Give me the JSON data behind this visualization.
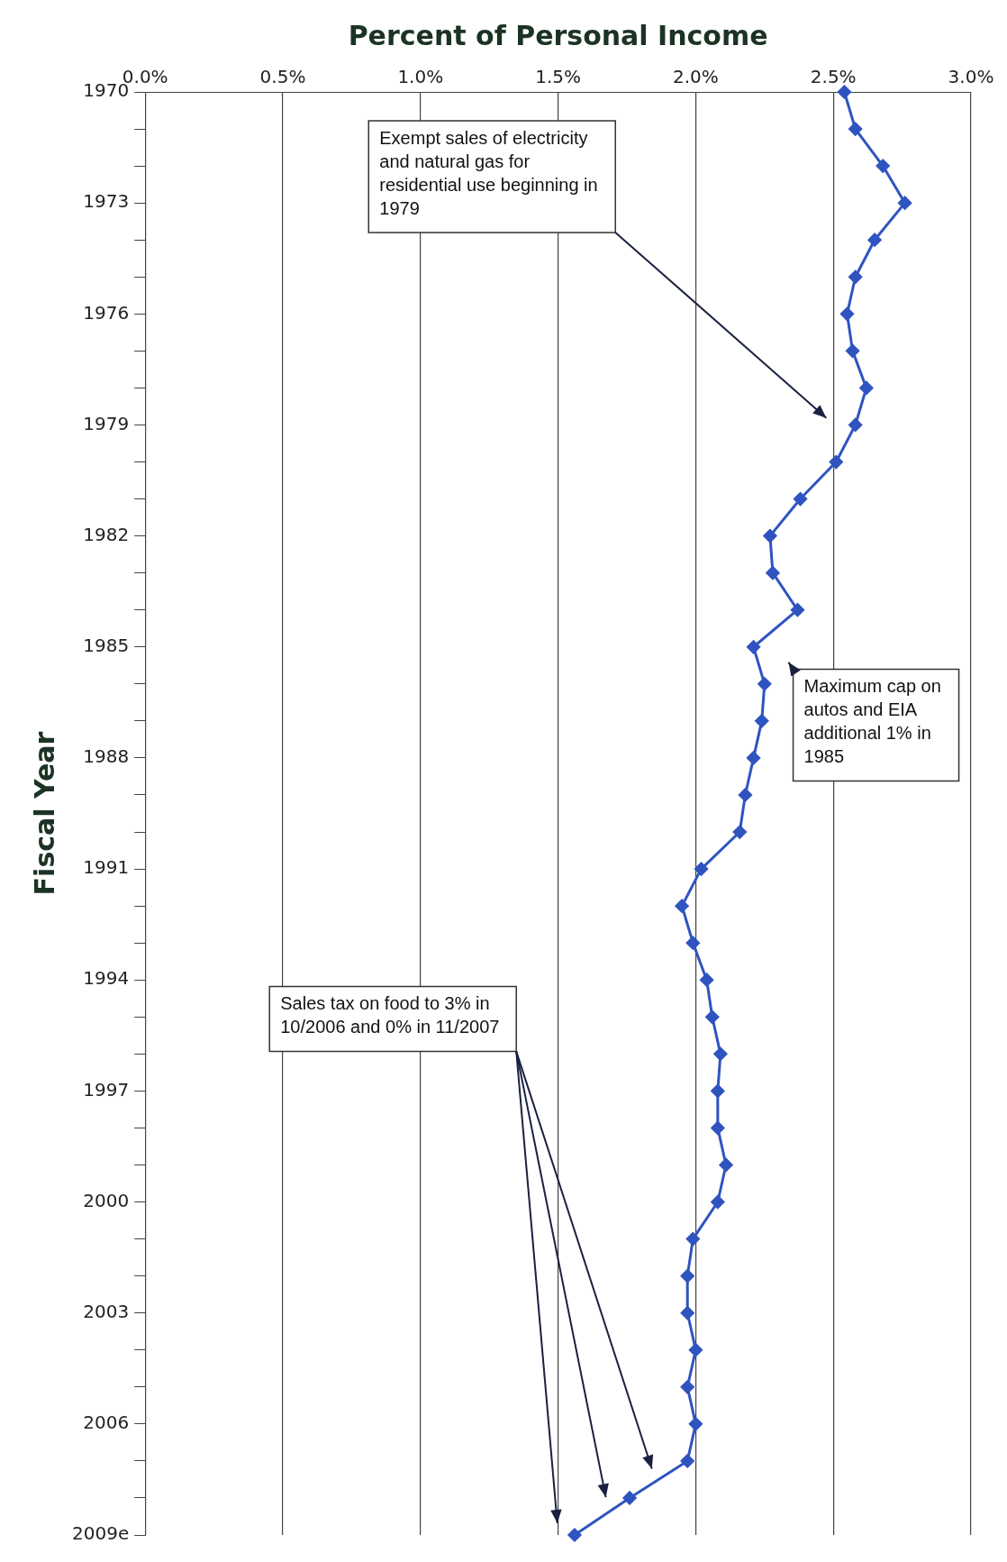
{
  "chart_data": {
    "type": "line",
    "orientation": "horizontal",
    "xlabel": "Percent of Personal Income",
    "ylabel": "Fiscal Year",
    "categories": [
      "1970",
      null,
      null,
      "1973",
      null,
      null,
      "1976",
      null,
      null,
      "1979",
      null,
      null,
      "1982",
      null,
      null,
      "1985",
      null,
      null,
      "1988",
      null,
      null,
      "1991",
      null,
      null,
      "1994",
      null,
      null,
      "1997",
      null,
      null,
      "2000",
      null,
      null,
      "2003",
      null,
      null,
      "2006",
      null,
      null,
      "2009e"
    ],
    "series": [
      {
        "color": "#2f54c0",
        "values": [
          2.54,
          2.58,
          2.68,
          2.76,
          2.65,
          2.58,
          2.55,
          2.57,
          2.62,
          2.58,
          2.51,
          2.38,
          2.27,
          2.28,
          2.37,
          2.21,
          2.25,
          2.24,
          2.21,
          2.18,
          2.16,
          2.02,
          1.95,
          1.99,
          2.04,
          2.06,
          2.09,
          2.08,
          2.08,
          2.11,
          2.08,
          1.99,
          1.97,
          1.97,
          2.0,
          1.97,
          2.0,
          1.97,
          1.76,
          1.56
        ]
      }
    ],
    "xlim": [
      0,
      3
    ],
    "xticks": [
      {
        "value": 0,
        "label": "0.0%"
      },
      {
        "value": 0.5,
        "label": "0.5%"
      },
      {
        "value": 1,
        "label": "1.0%"
      },
      {
        "value": 1.5,
        "label": "1.5%"
      },
      {
        "value": 2,
        "label": "2.0%"
      },
      {
        "value": 2.5,
        "label": "2.5%"
      },
      {
        "value": 3,
        "label": "3.0%"
      }
    ],
    "grid": "x",
    "legend": false,
    "marker": "diamond",
    "line_style": "solid",
    "annotations": [
      "Exempt sales of electricity and natural gas for residential use beginning in 1979",
      "Maximum cap on autos and EIA additional 1% in 1985",
      "Sales tax on food to 3% in 10/2006 and 0% in 11/2007"
    ]
  }
}
